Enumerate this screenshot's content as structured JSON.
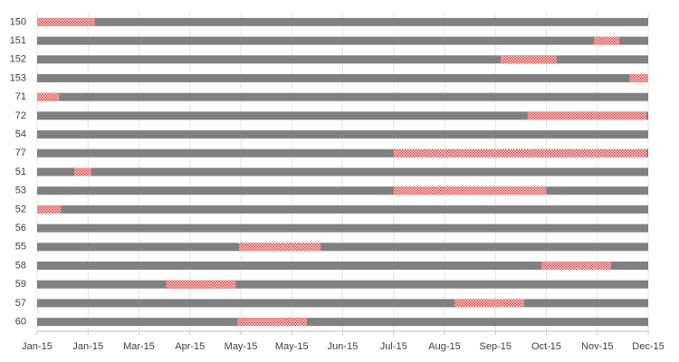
{
  "chart_data": {
    "type": "gantt",
    "categories": [
      "150",
      "151",
      "152",
      "153",
      "71",
      "72",
      "54",
      "77",
      "51",
      "53",
      "52",
      "56",
      "55",
      "58",
      "59",
      "57",
      "60"
    ],
    "start": [
      42005,
      42333,
      42278,
      42354,
      42005,
      42294,
      null,
      42215,
      42027,
      42215,
      42005,
      null,
      42124,
      42302,
      42081,
      42251,
      42123
    ],
    "end": [
      42039,
      42348,
      42311,
      42365,
      42018,
      42364,
      null,
      42364,
      42037,
      42305,
      42019,
      null,
      42172,
      42343,
      42122,
      42292,
      42164
    ],
    "track_color": "#808080",
    "color": "#e05050",
    "xlim": [
      42005,
      42365
    ],
    "xticks": [
      {
        "value": 42005,
        "label": "Jan-15"
      },
      {
        "value": 42035,
        "label": "Jan-15"
      },
      {
        "value": 42065,
        "label": "Mar-15"
      },
      {
        "value": 42095,
        "label": "Apr-15"
      },
      {
        "value": 42125,
        "label": "May-15"
      },
      {
        "value": 42155,
        "label": "May-15"
      },
      {
        "value": 42185,
        "label": "Jun-15"
      },
      {
        "value": 42215,
        "label": "Jul-15"
      },
      {
        "value": 42245,
        "label": "Aug-15"
      },
      {
        "value": 42275,
        "label": "Sep-15"
      },
      {
        "value": 42305,
        "label": "Oct-15"
      },
      {
        "value": 42335,
        "label": "Nov-15"
      },
      {
        "value": 42365,
        "label": "Dec-15"
      }
    ],
    "grid": true
  }
}
